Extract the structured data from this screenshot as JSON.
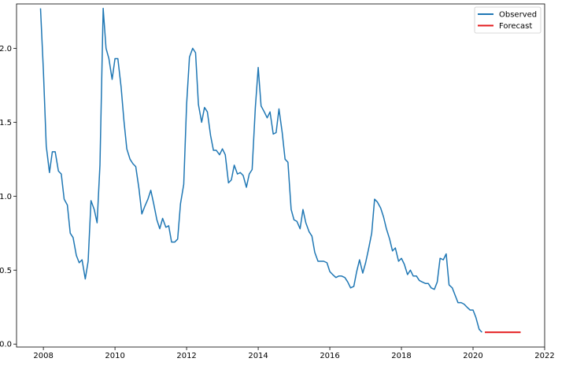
{
  "chart_data": {
    "type": "line",
    "title": "",
    "xlabel": "",
    "ylabel": "",
    "xlim": [
      2007.25,
      2022.0
    ],
    "ylim": [
      -0.02,
      2.3
    ],
    "x_ticks": [
      2008,
      2010,
      2012,
      2014,
      2016,
      2018,
      2020,
      2022
    ],
    "x_tick_labels": [
      "2008",
      "2010",
      "2012",
      "2014",
      "2016",
      "2018",
      "2020",
      "2022"
    ],
    "y_ticks": [
      0.0,
      0.5,
      1.0,
      1.5,
      2.0
    ],
    "y_tick_labels": [
      "0.0",
      "0.5",
      "1.0",
      "1.5",
      "2.0"
    ],
    "grid": false,
    "legend_position": "top-right",
    "series": [
      {
        "name": "Observed",
        "color": "#1f77b4",
        "x": [
          2007.92,
          2008.0,
          2008.08,
          2008.17,
          2008.25,
          2008.33,
          2008.42,
          2008.5,
          2008.58,
          2008.67,
          2008.75,
          2008.83,
          2008.92,
          2009.0,
          2009.08,
          2009.17,
          2009.25,
          2009.33,
          2009.42,
          2009.5,
          2009.58,
          2009.67,
          2009.75,
          2009.83,
          2009.92,
          2010.0,
          2010.08,
          2010.17,
          2010.25,
          2010.33,
          2010.42,
          2010.5,
          2010.58,
          2010.67,
          2010.75,
          2010.83,
          2010.92,
          2011.0,
          2011.08,
          2011.17,
          2011.25,
          2011.33,
          2011.42,
          2011.5,
          2011.58,
          2011.67,
          2011.75,
          2011.83,
          2011.92,
          2012.0,
          2012.08,
          2012.17,
          2012.25,
          2012.33,
          2012.42,
          2012.5,
          2012.58,
          2012.67,
          2012.75,
          2012.83,
          2012.92,
          2013.0,
          2013.08,
          2013.17,
          2013.25,
          2013.33,
          2013.42,
          2013.5,
          2013.58,
          2013.67,
          2013.75,
          2013.83,
          2013.92,
          2014.0,
          2014.08,
          2014.17,
          2014.25,
          2014.33,
          2014.42,
          2014.5,
          2014.58,
          2014.67,
          2014.75,
          2014.83,
          2014.92,
          2015.0,
          2015.08,
          2015.17,
          2015.25,
          2015.33,
          2015.42,
          2015.5,
          2015.58,
          2015.67,
          2015.75,
          2015.83,
          2015.92,
          2016.0,
          2016.08,
          2016.17,
          2016.25,
          2016.33,
          2016.42,
          2016.5,
          2016.58,
          2016.67,
          2016.75,
          2016.83,
          2016.92,
          2017.0,
          2017.08,
          2017.17,
          2017.25,
          2017.33,
          2017.42,
          2017.5,
          2017.58,
          2017.67,
          2017.75,
          2017.83,
          2017.92,
          2018.0,
          2018.08,
          2018.17,
          2018.25,
          2018.33,
          2018.42,
          2018.5,
          2018.58,
          2018.67,
          2018.75,
          2018.83,
          2018.92,
          2019.0,
          2019.08,
          2019.17,
          2019.25,
          2019.33,
          2019.42,
          2019.5,
          2019.58,
          2019.67,
          2019.75,
          2019.83,
          2019.92,
          2020.0,
          2020.08,
          2020.17,
          2020.25
        ],
        "y": [
          2.27,
          1.85,
          1.34,
          1.16,
          1.3,
          1.3,
          1.17,
          1.15,
          0.98,
          0.94,
          0.75,
          0.72,
          0.6,
          0.55,
          0.57,
          0.44,
          0.56,
          0.97,
          0.91,
          0.82,
          1.21,
          2.27,
          2.0,
          1.93,
          1.79,
          1.93,
          1.93,
          1.74,
          1.51,
          1.32,
          1.25,
          1.22,
          1.2,
          1.05,
          0.88,
          0.93,
          0.98,
          1.04,
          0.95,
          0.84,
          0.78,
          0.85,
          0.79,
          0.8,
          0.69,
          0.69,
          0.71,
          0.95,
          1.08,
          1.62,
          1.94,
          2.0,
          1.97,
          1.62,
          1.5,
          1.6,
          1.57,
          1.41,
          1.31,
          1.31,
          1.28,
          1.32,
          1.28,
          1.09,
          1.11,
          1.21,
          1.15,
          1.16,
          1.14,
          1.06,
          1.15,
          1.18,
          1.6,
          1.87,
          1.61,
          1.57,
          1.53,
          1.57,
          1.42,
          1.43,
          1.59,
          1.43,
          1.25,
          1.23,
          0.91,
          0.84,
          0.83,
          0.78,
          0.91,
          0.82,
          0.76,
          0.73,
          0.62,
          0.56,
          0.56,
          0.56,
          0.55,
          0.49,
          0.47,
          0.45,
          0.46,
          0.46,
          0.45,
          0.42,
          0.38,
          0.39,
          0.49,
          0.57,
          0.48,
          0.55,
          0.64,
          0.75,
          0.98,
          0.96,
          0.92,
          0.86,
          0.78,
          0.71,
          0.63,
          0.65,
          0.56,
          0.58,
          0.54,
          0.47,
          0.5,
          0.46,
          0.46,
          0.43,
          0.42,
          0.41,
          0.41,
          0.38,
          0.37,
          0.42,
          0.58,
          0.57,
          0.61,
          0.4,
          0.38,
          0.33,
          0.28,
          0.28,
          0.27,
          0.25,
          0.23,
          0.23,
          0.18,
          0.1,
          0.08
        ]
      },
      {
        "name": "Forecast",
        "color": "#e31a1c",
        "x": [
          2020.33,
          2021.33
        ],
        "y": [
          0.08,
          0.08
        ]
      }
    ]
  }
}
